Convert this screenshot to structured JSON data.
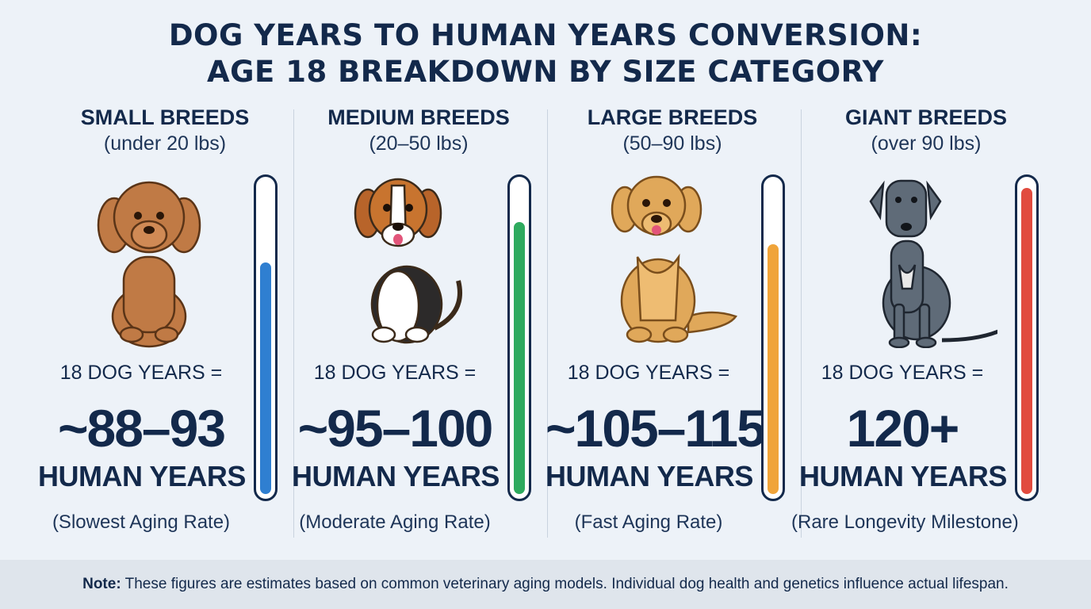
{
  "title_line1": "DOG YEARS TO HUMAN YEARS CONVERSION:",
  "title_line2": "AGE 18 BREAKDOWN BY SIZE CATEGORY",
  "categories": [
    {
      "name": "SMALL BREEDS",
      "weight": "(under 20 lbs)",
      "dog_icon": "poodle-icon",
      "equals": "18 DOG YEARS =",
      "human_years": "~88–93",
      "unit": "HUMAN YEARS",
      "rate": "(Slowest Aging Rate)",
      "meter_level": 0.74,
      "color": "#2f7fd1"
    },
    {
      "name": "MEDIUM BREEDS",
      "weight": "(20–50 lbs)",
      "dog_icon": "beagle-icon",
      "equals": "18 DOG YEARS =",
      "human_years": "~95–100",
      "unit": "HUMAN YEARS",
      "rate": "(Moderate Aging Rate)",
      "meter_level": 0.87,
      "color": "#2eaa5e"
    },
    {
      "name": "LARGE BREEDS",
      "weight": "(50–90 lbs)",
      "dog_icon": "golden-retriever-icon",
      "equals": "18 DOG YEARS =",
      "human_years": "~105–115",
      "unit": "HUMAN YEARS",
      "rate": "(Fast Aging Rate)",
      "meter_level": 0.8,
      "color": "#f0a43a"
    },
    {
      "name": "GIANT BREEDS",
      "weight": "(over 90 lbs)",
      "dog_icon": "great-dane-icon",
      "equals": "18 DOG YEARS =",
      "human_years": "120+",
      "unit": "HUMAN YEARS",
      "rate": "(Rare Longevity Milestone)",
      "meter_level": 0.98,
      "color": "#e14b3f"
    }
  ],
  "footer": {
    "label": "Note:",
    "text": "These figures are estimates based on common veterinary aging models. Individual dog health and genetics influence actual lifespan."
  }
}
